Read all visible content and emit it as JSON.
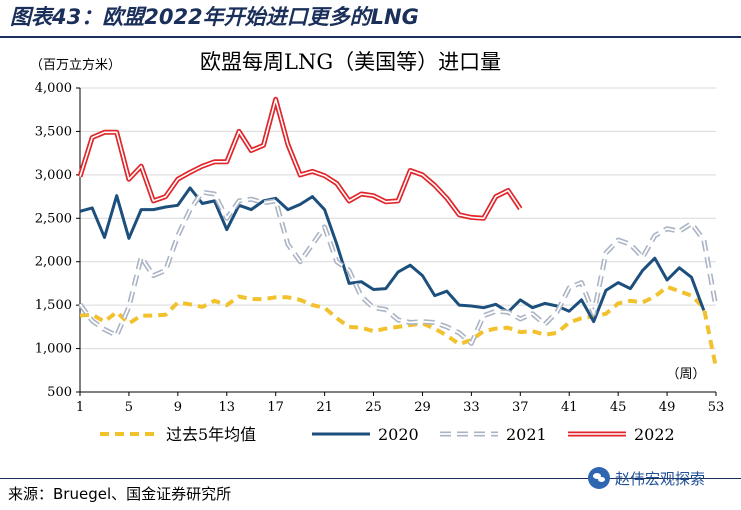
{
  "figure_title": "图表43：欧盟2022年开始进口更多的LNG",
  "source": "来源：Bruegel、国金证券研究所",
  "watermark": "赵伟宏观探索",
  "chart_data": {
    "type": "line",
    "title": "欧盟每周LNG（美国等）进口量",
    "unit_label": "（百万立方米）",
    "x_unit": "（周）",
    "ylim": [
      500,
      4000
    ],
    "xlim": [
      1,
      53
    ],
    "yticks": [
      "4,000",
      "3,500",
      "3,000",
      "2,500",
      "2,000",
      "1,500",
      "1,000",
      "500"
    ],
    "ytick_values": [
      4000,
      3500,
      3000,
      2500,
      2000,
      1500,
      1000,
      500
    ],
    "xticks": [
      "1",
      "5",
      "9",
      "13",
      "17",
      "21",
      "25",
      "29",
      "33",
      "37",
      "41",
      "45",
      "49",
      "53"
    ],
    "xtick_values": [
      1,
      5,
      9,
      13,
      17,
      21,
      25,
      29,
      33,
      37,
      41,
      45,
      49,
      53
    ],
    "grid": "horizontal",
    "legend_position": "bottom",
    "series": [
      {
        "name": "过去5年均值",
        "color": "#f2c12e",
        "style": "dashed",
        "x": [
          1,
          2,
          3,
          4,
          5,
          6,
          7,
          8,
          9,
          10,
          11,
          12,
          13,
          14,
          15,
          16,
          17,
          18,
          19,
          20,
          21,
          22,
          23,
          24,
          25,
          26,
          27,
          28,
          29,
          30,
          31,
          32,
          33,
          34,
          35,
          36,
          37,
          38,
          39,
          40,
          41,
          42,
          43,
          44,
          45,
          46,
          47,
          48,
          49,
          50,
          51,
          52,
          53
        ],
        "values": [
          1380,
          1390,
          1310,
          1420,
          1290,
          1380,
          1380,
          1390,
          1530,
          1510,
          1480,
          1550,
          1500,
          1600,
          1570,
          1570,
          1590,
          1590,
          1560,
          1500,
          1470,
          1350,
          1250,
          1240,
          1200,
          1230,
          1250,
          1270,
          1290,
          1230,
          1150,
          1050,
          1100,
          1200,
          1230,
          1240,
          1190,
          1200,
          1160,
          1180,
          1300,
          1350,
          1370,
          1400,
          1520,
          1550,
          1530,
          1600,
          1710,
          1660,
          1610,
          1470,
          780
        ]
      },
      {
        "name": "2020",
        "color": "#1c4f7c",
        "style": "solid",
        "x": [
          1,
          2,
          3,
          4,
          5,
          6,
          7,
          8,
          9,
          10,
          11,
          12,
          13,
          14,
          15,
          16,
          17,
          18,
          19,
          20,
          21,
          22,
          23,
          24,
          25,
          26,
          27,
          28,
          29,
          30,
          31,
          32,
          33,
          34,
          35,
          36,
          37,
          38,
          39,
          40,
          41,
          42,
          43,
          44,
          45,
          46,
          47,
          48,
          49,
          50,
          51,
          52
        ],
        "values": [
          2580,
          2620,
          2280,
          2760,
          2270,
          2600,
          2600,
          2630,
          2650,
          2850,
          2670,
          2700,
          2370,
          2650,
          2600,
          2700,
          2730,
          2600,
          2660,
          2750,
          2600,
          2200,
          1750,
          1770,
          1680,
          1690,
          1880,
          1960,
          1840,
          1610,
          1660,
          1500,
          1490,
          1470,
          1510,
          1420,
          1560,
          1470,
          1520,
          1490,
          1430,
          1560,
          1310,
          1670,
          1760,
          1690,
          1900,
          2040,
          1790,
          1930,
          1820,
          1440
        ]
      },
      {
        "name": "2021",
        "color": "#aab4c4",
        "style": "double-dashed",
        "x": [
          1,
          2,
          3,
          4,
          5,
          6,
          7,
          8,
          9,
          10,
          11,
          12,
          13,
          14,
          15,
          16,
          17,
          18,
          19,
          20,
          21,
          22,
          23,
          24,
          25,
          26,
          27,
          28,
          29,
          30,
          31,
          32,
          33,
          34,
          35,
          36,
          37,
          38,
          39,
          40,
          41,
          42,
          43,
          44,
          45,
          46,
          47,
          48,
          49,
          50,
          51,
          52,
          53
        ],
        "values": [
          1510,
          1320,
          1220,
          1150,
          1480,
          2050,
          1840,
          1900,
          2300,
          2600,
          2800,
          2780,
          2500,
          2700,
          2720,
          2680,
          2700,
          2200,
          2000,
          2200,
          2400,
          2000,
          1900,
          1600,
          1470,
          1450,
          1330,
          1300,
          1310,
          1300,
          1250,
          1180,
          1060,
          1380,
          1430,
          1420,
          1340,
          1400,
          1280,
          1420,
          1700,
          1760,
          1400,
          2100,
          2250,
          2200,
          2050,
          2300,
          2380,
          2350,
          2440,
          2250,
          1480
        ]
      },
      {
        "name": "2022",
        "color": "#e0262b",
        "style": "double",
        "x": [
          1,
          2,
          3,
          4,
          5,
          6,
          7,
          8,
          9,
          10,
          11,
          12,
          13,
          14,
          15,
          16,
          17,
          18,
          19,
          20,
          21,
          22,
          23,
          24,
          25,
          26,
          27,
          28,
          29,
          30,
          31,
          32,
          33,
          34,
          35,
          36,
          37
        ],
        "values": [
          2980,
          3430,
          3490,
          3490,
          2950,
          3100,
          2700,
          2750,
          2950,
          3030,
          3100,
          3150,
          3150,
          3500,
          3280,
          3340,
          3870,
          3350,
          3000,
          3040,
          2990,
          2900,
          2700,
          2780,
          2760,
          2690,
          2700,
          3050,
          3000,
          2880,
          2730,
          2540,
          2510,
          2500,
          2750,
          2820,
          2610
        ]
      }
    ]
  }
}
